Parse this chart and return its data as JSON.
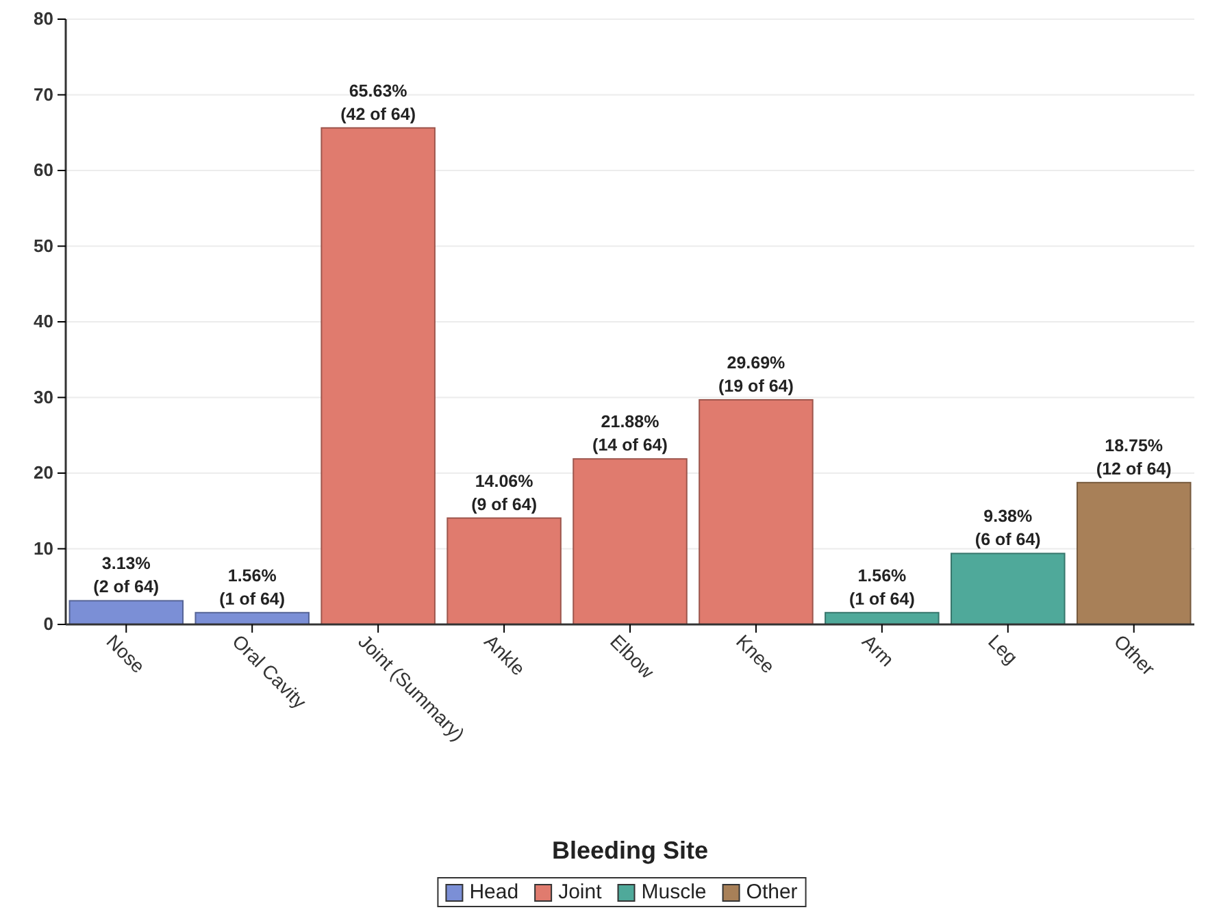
{
  "chart_data": {
    "type": "bar",
    "xlabel": "Bleeding Site",
    "categories": [
      "Nose",
      "Oral Cavity",
      "Joint (Summary)",
      "Ankle",
      "Elbow",
      "Knee",
      "Arm",
      "Leg",
      "Other"
    ],
    "stacked": true,
    "series": [
      {
        "name": "Head",
        "color": "#7b8fd6",
        "values": [
          3.13,
          1.56,
          null,
          null,
          null,
          null,
          null,
          null,
          null
        ]
      },
      {
        "name": "Joint",
        "color": "#e07b6e",
        "values": [
          null,
          null,
          65.63,
          14.06,
          21.88,
          29.69,
          null,
          null,
          null
        ]
      },
      {
        "name": "Muscle",
        "color": "#4fa99a",
        "values": [
          null,
          null,
          null,
          null,
          null,
          null,
          1.56,
          9.38,
          null
        ]
      },
      {
        "name": "Other",
        "color": "#a88058",
        "values": [
          null,
          null,
          null,
          null,
          null,
          null,
          null,
          null,
          18.75
        ]
      }
    ],
    "value_labels": [
      "3.13%\n(2 of 64)",
      "1.56%\n(1 of 64)",
      "65.63%\n(42 of 64)",
      "14.06%\n(9 of 64)",
      "21.88%\n(14 of 64)",
      "29.69%\n(19 of 64)",
      "1.56%\n(1 of 64)",
      "9.38%\n(6 of 64)",
      "18.75%\n(12 of 64)"
    ],
    "ylim": [
      0,
      80
    ],
    "yticks": [
      0,
      10,
      20,
      30,
      40,
      50,
      60,
      70,
      80
    ],
    "grid": "y",
    "legend": "bottom"
  }
}
